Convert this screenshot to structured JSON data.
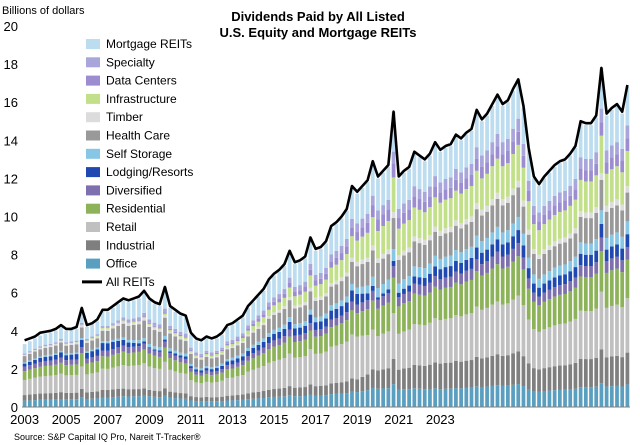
{
  "chart_data": {
    "type": "bar",
    "stacked": true,
    "title": "Dividends Paid by All Listed",
    "subtitle": "U.S. Equity and Mortgage REITs",
    "ylabel": "Billions of dollars",
    "ylim": [
      0,
      20
    ],
    "yticks": [
      0,
      2,
      4,
      6,
      8,
      10,
      12,
      14,
      16,
      18,
      20
    ],
    "xticks": [
      "2003",
      "2005",
      "2007",
      "2009",
      "2011",
      "2013",
      "2015",
      "2017",
      "2019",
      "2021",
      "2023"
    ],
    "frequency": "quarterly, 2003 Q1 - 2023 Q1",
    "series": [
      {
        "name": "Office",
        "color": "#5b9fc0"
      },
      {
        "name": "Industrial",
        "color": "#7f7f7f"
      },
      {
        "name": "Retail",
        "color": "#c0c0c0"
      },
      {
        "name": "Residential",
        "color": "#8db35a"
      },
      {
        "name": "Diversified",
        "color": "#7e6fae"
      },
      {
        "name": "Lodging/Resorts",
        "color": "#1f49b0"
      },
      {
        "name": "Self Storage",
        "color": "#88c6e6"
      },
      {
        "name": "Health Care",
        "color": "#999999"
      },
      {
        "name": "Timber",
        "color": "#dcdcdc"
      },
      {
        "name": "Infrastructure",
        "color": "#c2e08a"
      },
      {
        "name": "Data Centers",
        "color": "#9b8dcf"
      },
      {
        "name": "Specialty",
        "color": "#a9a6dc"
      },
      {
        "name": "Mortgage REITs",
        "color": "#bcdcf0"
      }
    ],
    "line": {
      "name": "All REITs",
      "color": "#000000"
    },
    "shares_by_year": {
      "2003": [
        0.1,
        0.09,
        0.24,
        0.14,
        0.07,
        0.05,
        0.02,
        0.1,
        0.02,
        0.0,
        0.0,
        0.02,
        0.15
      ],
      "2007": [
        0.1,
        0.08,
        0.22,
        0.13,
        0.06,
        0.08,
        0.02,
        0.11,
        0.02,
        0.01,
        0.0,
        0.02,
        0.15
      ],
      "2009": [
        0.1,
        0.06,
        0.22,
        0.12,
        0.05,
        0.01,
        0.03,
        0.16,
        0.02,
        0.01,
        0.01,
        0.03,
        0.18
      ],
      "2013": [
        0.08,
        0.06,
        0.22,
        0.11,
        0.05,
        0.05,
        0.03,
        0.12,
        0.02,
        0.03,
        0.02,
        0.03,
        0.18
      ],
      "2019": [
        0.07,
        0.06,
        0.2,
        0.11,
        0.04,
        0.05,
        0.03,
        0.1,
        0.02,
        0.1,
        0.04,
        0.04,
        0.14
      ],
      "2020": [
        0.08,
        0.08,
        0.15,
        0.12,
        0.04,
        0.01,
        0.04,
        0.11,
        0.02,
        0.12,
        0.05,
        0.04,
        0.14
      ],
      "2023": [
        0.07,
        0.1,
        0.17,
        0.12,
        0.04,
        0.04,
        0.04,
        0.09,
        0.02,
        0.11,
        0.04,
        0.04,
        0.12
      ]
    },
    "totals": [
      3.3,
      3.45,
      3.6,
      3.75,
      3.85,
      3.9,
      4.0,
      4.2,
      4.0,
      4.05,
      4.1,
      5.2,
      4.2,
      4.35,
      4.5,
      5.0,
      5.0,
      5.2,
      5.4,
      5.6,
      5.5,
      5.6,
      5.7,
      6.0,
      5.6,
      5.4,
      5.3,
      6.3,
      5.2,
      5.0,
      4.8,
      4.7,
      3.8,
      3.5,
      3.4,
      3.6,
      3.5,
      3.6,
      3.8,
      4.2,
      4.3,
      4.5,
      4.7,
      5.2,
      5.5,
      5.8,
      6.1,
      6.6,
      6.9,
      7.1,
      7.4,
      8.1,
      7.5,
      7.6,
      7.8,
      8.9,
      8.2,
      8.3,
      8.6,
      9.4,
      9.6,
      9.9,
      10.3,
      11.5,
      11.2,
      11.5,
      11.8,
      12.9,
      12.0,
      12.3,
      12.6,
      15.5,
      12.0,
      12.3,
      12.5,
      13.3,
      13.1,
      12.9,
      13.2,
      13.8,
      13.4,
      13.6,
      13.7,
      14.2,
      14.0,
      14.3,
      14.5,
      15.5,
      15.0,
      15.3,
      15.8,
      16.3,
      15.8,
      16.0,
      16.6,
      17.2,
      15.7,
      13.5,
      12.0,
      11.6,
      12.0,
      12.3,
      12.6,
      12.8,
      12.9,
      13.2,
      13.6,
      14.9,
      14.8,
      14.8,
      15.2,
      17.8,
      15.3,
      15.6,
      15.8,
      15.4,
      16.8
    ],
    "all_reits_line": [
      3.5,
      3.6,
      3.7,
      3.9,
      3.95,
      4.0,
      4.1,
      4.3,
      4.1,
      4.1,
      4.2,
      5.2,
      4.3,
      4.4,
      4.6,
      5.1,
      5.1,
      5.3,
      5.5,
      5.7,
      5.6,
      5.7,
      5.8,
      6.1,
      5.7,
      5.5,
      5.4,
      6.3,
      5.3,
      5.1,
      4.9,
      4.8,
      3.9,
      3.6,
      3.5,
      3.7,
      3.6,
      3.7,
      3.9,
      4.3,
      4.4,
      4.6,
      4.8,
      5.3,
      5.6,
      5.9,
      6.2,
      6.7,
      7.0,
      7.2,
      7.5,
      8.2,
      7.6,
      7.7,
      7.9,
      8.9,
      8.3,
      8.4,
      8.7,
      9.5,
      9.7,
      10.0,
      10.4,
      11.6,
      11.3,
      11.6,
      11.9,
      12.9,
      12.1,
      12.4,
      12.7,
      15.5,
      12.1,
      12.4,
      12.6,
      13.4,
      13.2,
      13.0,
      13.3,
      13.9,
      13.5,
      13.7,
      13.8,
      14.3,
      14.1,
      14.4,
      14.6,
      15.6,
      15.1,
      15.4,
      15.9,
      16.4,
      15.9,
      16.1,
      16.7,
      17.2,
      15.8,
      13.6,
      12.1,
      11.7,
      12.1,
      12.4,
      12.7,
      12.9,
      13.0,
      13.3,
      13.7,
      15.0,
      14.9,
      14.9,
      15.3,
      17.8,
      15.4,
      15.7,
      15.9,
      15.5,
      16.9
    ],
    "source": "Source: S&P Capital IQ Pro, Nareit T-Tracker®"
  }
}
